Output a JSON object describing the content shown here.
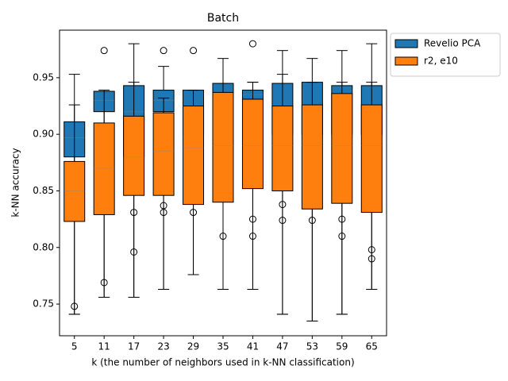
{
  "chart_data": {
    "type": "box",
    "title": "Batch",
    "xlabel": "k (the number of neighbors used in k-NN classification)",
    "ylabel": "k-NN accuracy",
    "categories": [
      "5",
      "11",
      "17",
      "23",
      "29",
      "35",
      "41",
      "47",
      "53",
      "59",
      "65"
    ],
    "ylim": [
      0.722,
      0.992
    ],
    "yticks": [
      0.75,
      {
        "value": 0.8,
        "label": "0.80"
      },
      0.85,
      {
        "value": 0.9,
        "label": "0.90"
      },
      0.95
    ],
    "grid": false,
    "legend": "upper right outside",
    "series": [
      {
        "name": "Revelio PCA",
        "color": "#1f77b4",
        "whislo": [
          0.741,
          0.756,
          0.756,
          0.763,
          0.776,
          0.763,
          0.763,
          0.741,
          0.735,
          0.741,
          0.763
        ],
        "q1": [
          0.88,
          0.92,
          0.88,
          0.92,
          0.9,
          0.9,
          0.931,
          0.9,
          0.9,
          0.9,
          0.9
        ],
        "med": [
          0.897,
          0.93,
          0.92,
          0.93,
          0.925,
          0.935,
          0.935,
          0.925,
          0.926,
          0.927,
          0.926
        ],
        "q3": [
          0.911,
          0.938,
          0.943,
          0.939,
          0.939,
          0.945,
          0.939,
          0.945,
          0.946,
          0.943,
          0.943
        ],
        "whishi": [
          0.953,
          0.939,
          0.98,
          0.96,
          0.939,
          0.967,
          0.946,
          0.974,
          0.967,
          0.974,
          0.98
        ],
        "fliers": [
          [],
          [
            0.974
          ],
          [],
          [
            0.974
          ],
          [
            0.974
          ],
          [],
          [
            0.98
          ],
          [],
          [],
          [],
          []
        ]
      },
      {
        "name": "r2, e10",
        "color": "#ff7f0e",
        "whislo": [
          0.741,
          0.756,
          0.756,
          0.763,
          0.776,
          0.763,
          0.763,
          0.741,
          0.735,
          0.741,
          0.763
        ],
        "q1": [
          0.823,
          0.829,
          0.846,
          0.846,
          0.838,
          0.84,
          0.852,
          0.85,
          0.834,
          0.839,
          0.831
        ],
        "med": [
          0.85,
          0.87,
          0.88,
          0.885,
          0.888,
          0.89,
          0.89,
          0.89,
          0.89,
          0.89,
          0.89
        ],
        "q3": [
          0.876,
          0.91,
          0.916,
          0.919,
          0.925,
          0.937,
          0.931,
          0.925,
          0.926,
          0.936,
          0.926
        ],
        "whishi": [
          0.926,
          0.938,
          0.946,
          0.932,
          0.939,
          0.945,
          0.946,
          0.953,
          0.946,
          0.946,
          0.946
        ],
        "fliers": [
          [
            0.748
          ],
          [
            0.769
          ],
          [
            0.831,
            0.796
          ],
          [
            0.837,
            0.831
          ],
          [
            0.831
          ],
          [
            0.81
          ],
          [
            0.825,
            0.81
          ],
          [
            0.838,
            0.824
          ],
          [
            0.824
          ],
          [
            0.825,
            0.81
          ],
          [
            0.798,
            0.79
          ]
        ]
      }
    ]
  }
}
